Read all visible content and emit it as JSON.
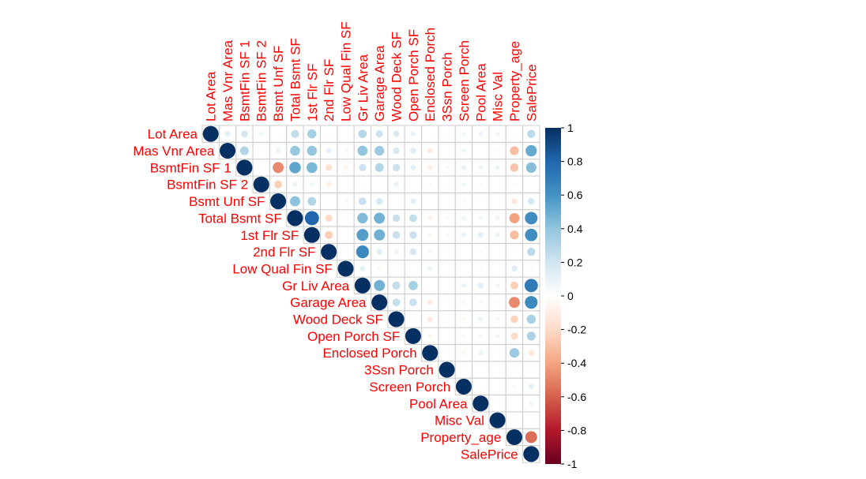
{
  "chart_data": {
    "type": "heatmap",
    "variables": [
      "Lot Area",
      "Mas Vnr Area",
      "BsmtFin SF 1",
      "BsmtFin SF 2",
      "Bsmt Unf SF",
      "Total Bsmt SF",
      "1st Flr SF",
      "2nd Flr SF",
      "Low Qual Fin SF",
      "Gr Liv Area",
      "Garage Area",
      "Wood Deck SF",
      "Open Porch SF",
      "Enclosed Porch",
      "3Ssn Porch",
      "Screen Porch",
      "Pool Area",
      "Misc Val",
      "Property_age",
      "SalePrice"
    ],
    "layout": "upper",
    "method": "circle",
    "values": [
      [
        1,
        0.12,
        0.19,
        0.08,
        0.02,
        0.25,
        0.33,
        0.03,
        0.01,
        0.28,
        0.21,
        0.16,
        0.1,
        0.02,
        0.02,
        0.06,
        0.09,
        0.07,
        -0.02,
        0.27
      ],
      [
        0.12,
        1,
        0.3,
        -0.02,
        0.09,
        0.39,
        0.39,
        0.12,
        -0.05,
        0.4,
        0.37,
        0.17,
        0.14,
        -0.11,
        0.01,
        0.07,
        0.01,
        0.04,
        -0.31,
        0.51
      ],
      [
        0.19,
        0.3,
        1,
        0.04,
        -0.48,
        0.53,
        0.46,
        -0.17,
        -0.07,
        0.21,
        0.3,
        0.22,
        0.12,
        -0.1,
        0.05,
        0.1,
        0.08,
        0.09,
        -0.28,
        0.43
      ],
      [
        0.08,
        -0.02,
        0.04,
        1,
        -0.24,
        0.09,
        0.08,
        -0.1,
        -0.01,
        -0.02,
        0.01,
        0.1,
        0.0,
        0.04,
        -0.02,
        0.07,
        0.04,
        0.0,
        0.03,
        0.01
      ],
      [
        0.02,
        0.09,
        -0.48,
        -0.24,
        1,
        0.41,
        0.3,
        0.0,
        0.05,
        0.23,
        0.18,
        0.0,
        0.12,
        0.01,
        -0.01,
        -0.05,
        -0.03,
        -0.01,
        -0.13,
        0.18
      ],
      [
        0.25,
        0.39,
        0.53,
        0.09,
        0.41,
        1,
        0.8,
        -0.2,
        -0.03,
        0.44,
        0.48,
        0.23,
        0.24,
        -0.08,
        0.04,
        0.08,
        0.07,
        0.08,
        -0.41,
        0.63
      ],
      [
        0.33,
        0.39,
        0.46,
        0.08,
        0.3,
        0.8,
        1,
        -0.25,
        -0.01,
        0.56,
        0.49,
        0.23,
        0.22,
        -0.06,
        0.05,
        0.1,
        0.12,
        0.09,
        -0.31,
        0.62
      ],
      [
        0.03,
        0.12,
        -0.17,
        -0.1,
        0.0,
        -0.2,
        -0.25,
        1,
        0.02,
        0.65,
        0.13,
        0.09,
        0.18,
        0.06,
        -0.03,
        0.01,
        0.04,
        0.0,
        -0.02,
        0.27
      ],
      [
        0.01,
        -0.05,
        -0.07,
        -0.01,
        0.05,
        -0.03,
        -0.01,
        0.02,
        1,
        0.11,
        -0.05,
        -0.02,
        0.01,
        0.09,
        -0.01,
        0.0,
        0.04,
        -0.01,
        0.14,
        -0.04
      ],
      [
        0.28,
        0.4,
        0.21,
        -0.02,
        0.23,
        0.44,
        0.56,
        0.65,
        0.11,
        1,
        0.48,
        0.25,
        0.34,
        0.0,
        0.01,
        0.09,
        0.13,
        0.07,
        -0.24,
        0.71
      ],
      [
        0.21,
        0.37,
        0.3,
        0.01,
        0.18,
        0.48,
        0.49,
        0.13,
        -0.05,
        0.48,
        1,
        0.24,
        0.23,
        -0.11,
        0.03,
        0.06,
        0.05,
        0.04,
        -0.48,
        0.64
      ],
      [
        0.16,
        0.17,
        0.22,
        0.1,
        0.0,
        0.23,
        0.23,
        0.09,
        -0.02,
        0.25,
        0.24,
        1,
        0.04,
        -0.12,
        -0.03,
        -0.05,
        0.09,
        0.06,
        -0.23,
        0.33
      ],
      [
        0.1,
        0.14,
        0.12,
        0.0,
        0.12,
        0.24,
        0.22,
        0.18,
        0.01,
        0.34,
        0.23,
        0.04,
        1,
        -0.06,
        -0.01,
        0.05,
        0.06,
        0.08,
        -0.2,
        0.31
      ],
      [
        0.02,
        -0.11,
        -0.1,
        0.04,
        0.01,
        -0.08,
        -0.06,
        0.06,
        0.09,
        0.0,
        -0.11,
        -0.12,
        -0.06,
        1,
        -0.03,
        -0.06,
        0.09,
        0.02,
        0.37,
        -0.13
      ],
      [
        0.02,
        0.01,
        0.05,
        -0.02,
        -0.01,
        0.04,
        0.05,
        -0.03,
        -0.01,
        0.01,
        0.03,
        -0.03,
        -0.01,
        -0.03,
        1,
        -0.03,
        -0.01,
        0.0,
        -0.03,
        0.03
      ],
      [
        0.06,
        0.07,
        0.1,
        0.07,
        -0.05,
        0.08,
        0.1,
        0.01,
        0.0,
        0.09,
        0.06,
        -0.05,
        0.05,
        -0.06,
        -0.03,
        1,
        0.03,
        0.01,
        0.05,
        0.11
      ],
      [
        0.09,
        0.01,
        0.08,
        0.04,
        -0.03,
        0.07,
        0.12,
        0.04,
        0.04,
        0.13,
        0.05,
        0.09,
        0.06,
        0.09,
        -0.01,
        0.03,
        1,
        0.02,
        0.01,
        0.07
      ],
      [
        0.07,
        0.04,
        0.09,
        0.0,
        -0.01,
        0.08,
        0.09,
        0.0,
        -0.01,
        0.07,
        0.04,
        0.06,
        0.08,
        0.02,
        0.0,
        0.01,
        0.02,
        1,
        0.02,
        -0.02
      ],
      [
        -0.02,
        -0.31,
        -0.28,
        0.03,
        -0.13,
        -0.41,
        -0.31,
        -0.02,
        0.14,
        -0.24,
        -0.48,
        -0.23,
        -0.2,
        0.37,
        -0.03,
        0.05,
        0.01,
        0.02,
        1,
        -0.56
      ],
      [
        0.27,
        0.51,
        0.43,
        0.01,
        0.18,
        0.63,
        0.62,
        0.27,
        -0.04,
        0.71,
        0.64,
        0.33,
        0.31,
        -0.13,
        0.03,
        0.11,
        0.07,
        -0.02,
        -0.56,
        1
      ]
    ],
    "colorbar": {
      "range": [
        -1,
        1
      ],
      "ticks": [
        "1",
        "0.8",
        "0.6",
        "0.4",
        "0.2",
        "0",
        "-0.2",
        "-0.4",
        "-0.6",
        "-0.8",
        "-1"
      ],
      "colors": [
        "#67001f",
        "#b2182b",
        "#d6604d",
        "#f4a582",
        "#fddbc7",
        "#ffffff",
        "#d1e5f0",
        "#92c5de",
        "#4393c3",
        "#2166ac",
        "#053061"
      ]
    },
    "label_color": "#ff0000",
    "grid_color": "#cccccc"
  }
}
